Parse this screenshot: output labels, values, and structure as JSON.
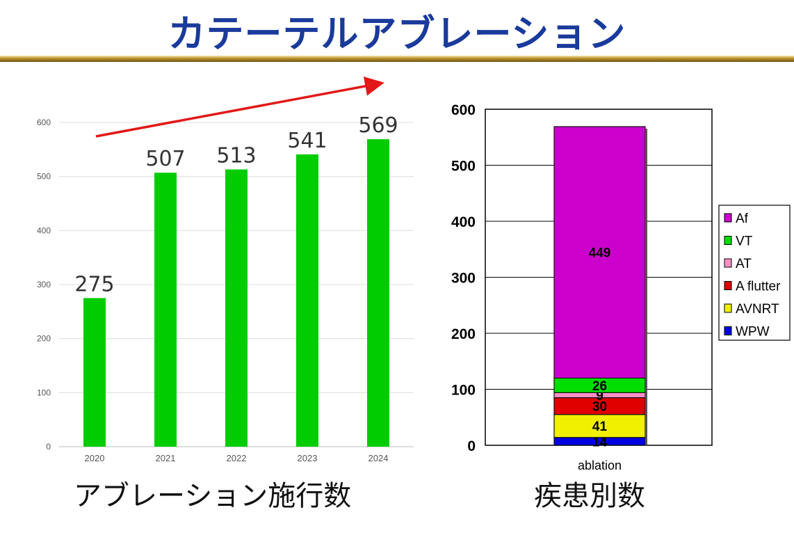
{
  "title": "カテーテルアブレーション",
  "left_caption": "アブレーション施行数",
  "right_caption": "疾患別数",
  "colors": {
    "title": "#1a3a9c",
    "bar": "#00cc00",
    "trend_arrow": "#e21818"
  },
  "chart_data": [
    {
      "type": "bar",
      "categories": [
        "2020",
        "2021",
        "2022",
        "2023",
        "2024"
      ],
      "values": [
        275,
        507,
        513,
        541,
        569
      ],
      "data_labels": [
        "275",
        "507",
        "513",
        "541",
        "569"
      ],
      "ylim": [
        0,
        600
      ],
      "yticks": [
        0,
        100,
        200,
        300,
        400,
        500,
        600
      ],
      "grid": true,
      "legend": "none",
      "annotation": "red upward trend arrow"
    },
    {
      "type": "bar",
      "stacked": true,
      "categories": [
        "ablation"
      ],
      "series": [
        {
          "name": "WPW",
          "values": [
            14
          ],
          "label": "14",
          "color": "#0000e0"
        },
        {
          "name": "AVNRT",
          "values": [
            41
          ],
          "label": "41",
          "color": "#f0f000"
        },
        {
          "name": "A flutter",
          "values": [
            30
          ],
          "label": "30",
          "color": "#e00000"
        },
        {
          "name": "AT",
          "values": [
            9
          ],
          "label": "9",
          "color": "#ff8fc8"
        },
        {
          "name": "VT",
          "values": [
            26
          ],
          "label": "26",
          "color": "#00dd00"
        },
        {
          "name": "Af",
          "values": [
            449
          ],
          "label": "449",
          "color": "#cc00cc"
        }
      ],
      "legend_order": [
        "Af",
        "VT",
        "AT",
        "A flutter",
        "AVNRT",
        "WPW"
      ],
      "ylim": [
        0,
        600
      ],
      "yticks": [
        0,
        100,
        200,
        300,
        400,
        500,
        600
      ],
      "grid": true,
      "legend": "right"
    }
  ]
}
